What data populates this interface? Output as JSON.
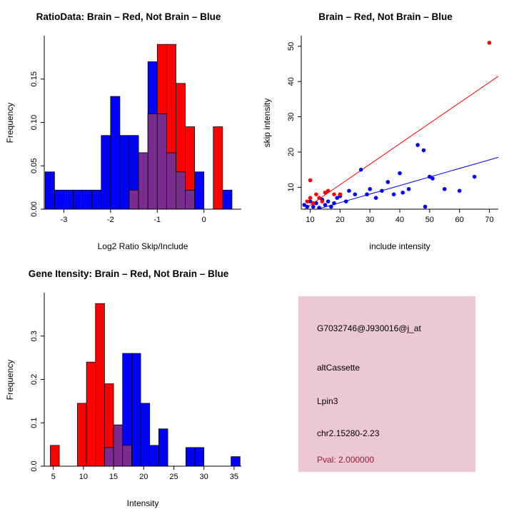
{
  "figure": {
    "background": "#ffffff"
  },
  "colors": {
    "brain": "#FF0000",
    "not_brain": "#0000FF",
    "overlap": "#7A2D8E",
    "info_background": "#ECC8D5",
    "pval_text": "#9E1B32"
  },
  "chart_data": [
    {
      "id": "ratio_histogram",
      "type": "bar",
      "title": "RatioData: Brain – Red, Not Brain – Blue",
      "xlabel": "Log2 Ratio Skip/Include",
      "ylabel": "Frequency",
      "xlim": [
        -3.42,
        0.8
      ],
      "ylim": [
        0,
        0.2
      ],
      "xticks": [
        -3,
        -2,
        -1,
        0
      ],
      "yticks": [
        0,
        0.05,
        0.1,
        0.15
      ],
      "ytick_labels": [
        "0.00",
        "0.05",
        "0.10",
        "0.15"
      ],
      "bin_width": 0.2,
      "grid": false,
      "overlap_color": "#7A2D8E",
      "series": [
        {
          "name": "Not Brain",
          "color": "#0000FF",
          "bars": [
            [
              -3.4,
              0.043
            ],
            [
              -3.2,
              0.022
            ],
            [
              -3.0,
              0.022
            ],
            [
              -2.8,
              0.022
            ],
            [
              -2.6,
              0.022
            ],
            [
              -2.4,
              0.022
            ],
            [
              -2.2,
              0.085
            ],
            [
              -2.0,
              0.13
            ],
            [
              -1.8,
              0.085
            ],
            [
              -1.6,
              0.085
            ],
            [
              -1.4,
              0.065
            ],
            [
              -1.2,
              0.17
            ],
            [
              -1.0,
              0.11
            ],
            [
              -0.8,
              0.065
            ],
            [
              -0.6,
              0.043
            ],
            [
              -0.4,
              0.022
            ],
            [
              -0.2,
              0.043
            ],
            [
              0.4,
              0.022
            ]
          ]
        },
        {
          "name": "Brain",
          "color": "#FF0000",
          "bars": [
            [
              -1.6,
              0.022
            ],
            [
              -1.4,
              0.065
            ],
            [
              -1.2,
              0.11
            ],
            [
              -1.0,
              0.19
            ],
            [
              -0.8,
              0.19
            ],
            [
              -0.6,
              0.145
            ],
            [
              -0.4,
              0.095
            ],
            [
              0.2,
              0.095
            ]
          ]
        }
      ]
    },
    {
      "id": "intensity_scatter",
      "type": "scatter",
      "title": "Brain – Red, Not Brain – Blue",
      "xlabel": "include intensity",
      "ylabel": "skip intensity",
      "xlim": [
        7,
        73
      ],
      "ylim": [
        3.8,
        53
      ],
      "xticks": [
        10,
        20,
        30,
        40,
        50,
        60,
        70
      ],
      "yticks": [
        10,
        20,
        30,
        40,
        50
      ],
      "grid": false,
      "series": [
        {
          "name": "Not Brain",
          "color": "#0000FF",
          "points": [
            [
              8,
              5
            ],
            [
              9,
              4.5
            ],
            [
              10,
              6
            ],
            [
              11,
              4.5
            ],
            [
              12,
              5.5
            ],
            [
              13,
              4.2
            ],
            [
              14,
              6.5
            ],
            [
              15,
              5
            ],
            [
              16,
              6
            ],
            [
              17,
              4.5
            ],
            [
              18,
              5.5
            ],
            [
              19,
              7
            ],
            [
              20,
              7.5
            ],
            [
              22,
              6
            ],
            [
              23,
              9
            ],
            [
              25,
              8
            ],
            [
              27,
              15
            ],
            [
              29,
              8
            ],
            [
              30,
              9.5
            ],
            [
              32,
              7
            ],
            [
              34,
              9
            ],
            [
              36,
              11.5
            ],
            [
              38,
              8
            ],
            [
              40,
              14
            ],
            [
              41,
              8.5
            ],
            [
              43,
              9.5
            ],
            [
              46,
              22
            ],
            [
              48,
              20.5
            ],
            [
              48.5,
              4.5
            ],
            [
              50,
              13
            ],
            [
              51,
              12.5
            ],
            [
              55,
              9.5
            ],
            [
              60,
              9
            ],
            [
              65,
              13
            ]
          ]
        },
        {
          "name": "Brain",
          "color": "#FF0000",
          "points": [
            [
              70,
              51
            ],
            [
              10,
              12
            ],
            [
              9,
              6
            ],
            [
              10,
              7
            ],
            [
              11,
              5.5
            ],
            [
              12,
              8
            ],
            [
              13,
              7
            ],
            [
              14,
              6
            ],
            [
              15,
              8.5
            ],
            [
              16,
              9
            ],
            [
              18,
              8
            ],
            [
              20,
              8
            ]
          ]
        }
      ],
      "lines": [
        {
          "name": "brain-fit",
          "color": "#FF0000",
          "x1": 7,
          "y1": 3.2,
          "x2": 73,
          "y2": 41.5
        },
        {
          "name": "not-brain-fit",
          "color": "#0000FF",
          "x1": 7,
          "y1": 2.5,
          "x2": 73,
          "y2": 18.5
        }
      ]
    },
    {
      "id": "gene_intensity_histogram",
      "type": "bar",
      "title": "Gene Itensity: Brain – Red, Not Brain – Blue",
      "xlabel": "Intensity",
      "ylabel": "Frequency",
      "xlim": [
        3.5,
        36.2
      ],
      "ylim": [
        0,
        0.4
      ],
      "xticks": [
        5,
        10,
        15,
        20,
        25,
        30,
        35
      ],
      "yticks": [
        0,
        0.1,
        0.2,
        0.3
      ],
      "ytick_labels": [
        "0.0",
        "0.1",
        "0.2",
        "0.3"
      ],
      "bin_width": 1.5,
      "grid": false,
      "overlap_color": "#7A2D8E",
      "series": [
        {
          "name": "Not Brain",
          "color": "#0000FF",
          "bars": [
            [
              13.5,
              0.043
            ],
            [
              15,
              0.095
            ],
            [
              16.5,
              0.26
            ],
            [
              18,
              0.26
            ],
            [
              19.5,
              0.145
            ],
            [
              21,
              0.048
            ],
            [
              22.5,
              0.086
            ],
            [
              27,
              0.043
            ],
            [
              28.5,
              0.043
            ],
            [
              34.5,
              0.022
            ]
          ]
        },
        {
          "name": "Brain",
          "color": "#FF0000",
          "bars": [
            [
              4.5,
              0.048
            ],
            [
              9,
              0.145
            ],
            [
              10.5,
              0.24
            ],
            [
              12,
              0.375
            ],
            [
              13.5,
              0.19
            ],
            [
              15,
              0.095
            ],
            [
              16.5,
              0.048
            ]
          ]
        }
      ]
    }
  ],
  "info_panel": {
    "background": "#ECC8D5",
    "lines": [
      {
        "text": "G7032746@J930016@j_at",
        "color": "#000000"
      },
      {
        "text": "altCassette",
        "color": "#000000"
      },
      {
        "text": "Lpin3",
        "color": "#000000"
      },
      {
        "text": "chr2.15280-2.23",
        "color": "#000000"
      },
      {
        "text": "Pval: 2.000000",
        "color": "#9E1B32"
      }
    ]
  }
}
